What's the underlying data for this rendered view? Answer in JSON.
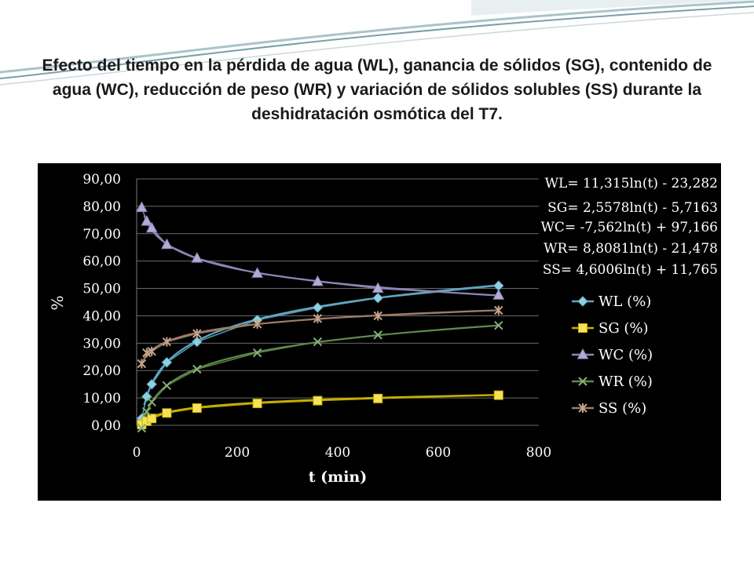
{
  "slide": {
    "title": "Efecto del tiempo en la pérdida de agua (WL), ganancia de sólidos (SG), contenido de agua (WC), reducción de peso (WR) y variación de sólidos solubles (SS) durante la deshidratación osmótica del T7."
  },
  "chart_data": {
    "type": "scatter",
    "xlabel": "t (min)",
    "ylabel": "%",
    "xlim": [
      0,
      800
    ],
    "ylim": [
      0,
      90
    ],
    "x_ticks": [
      0,
      200,
      400,
      600,
      800
    ],
    "x_tick_labels": [
      "0",
      "200",
      "400",
      "600",
      "800"
    ],
    "y_ticks": [
      0,
      10,
      20,
      30,
      40,
      50,
      60,
      70,
      80,
      90
    ],
    "y_tick_labels": [
      "0,00",
      "10,00",
      "20,00",
      "30,00",
      "40,00",
      "50,00",
      "60,00",
      "70,00",
      "80,00",
      "90,00"
    ],
    "grid": true,
    "legend_position": "right",
    "equations": [
      "WL= 11,315ln(t) - 23,282",
      "SG= 2,5578ln(t) - 5,7163",
      "WC= -7,562ln(t) + 97,166",
      "WR= 8,8081ln(t) - 21,478",
      "SS= 4,6006ln(t) + 11,765"
    ],
    "trendline": {
      "type": "logarithmic",
      "x_range": [
        15,
        720
      ]
    },
    "series": [
      {
        "name": "WL (%)",
        "color": "#5fa7c1",
        "marker_color": "#8fd0e2",
        "marker": "diamond",
        "trend_a": 11.315,
        "trend_b": -23.282,
        "points": [
          [
            10,
            2.5
          ],
          [
            20,
            10.5
          ],
          [
            30,
            15
          ],
          [
            60,
            23
          ],
          [
            120,
            30.5
          ],
          [
            240,
            38.5
          ],
          [
            360,
            43
          ],
          [
            480,
            46.5
          ],
          [
            720,
            51
          ]
        ]
      },
      {
        "name": "SG (%)",
        "color": "#c6b100",
        "marker_color": "#f6e25a",
        "marker": "square",
        "trend_a": 2.5578,
        "trend_b": -5.7163,
        "points": [
          [
            10,
            0.3
          ],
          [
            20,
            1.5
          ],
          [
            30,
            2.5
          ],
          [
            60,
            4.5
          ],
          [
            120,
            6.3
          ],
          [
            240,
            8
          ],
          [
            360,
            9
          ],
          [
            480,
            9.8
          ],
          [
            720,
            11
          ]
        ]
      },
      {
        "name": "WC (%)",
        "color": "#8e87b5",
        "marker_color": "#b3abd6",
        "marker": "triangle",
        "trend_a": -7.562,
        "trend_b": 97.166,
        "points": [
          [
            10,
            79.5
          ],
          [
            20,
            74.5
          ],
          [
            30,
            72
          ],
          [
            60,
            66
          ],
          [
            120,
            61
          ],
          [
            240,
            55.5
          ],
          [
            360,
            52.5
          ],
          [
            480,
            50
          ],
          [
            720,
            47.5
          ]
        ]
      },
      {
        "name": "WR (%)",
        "color": "#5d8a4f",
        "marker_color": "#86b078",
        "marker": "cross",
        "trend_a": 8.8081,
        "trend_b": -21.478,
        "points": [
          [
            10,
            -1
          ],
          [
            20,
            5
          ],
          [
            30,
            8.5
          ],
          [
            60,
            14.5
          ],
          [
            120,
            20.5
          ],
          [
            240,
            26.5
          ],
          [
            360,
            30.5
          ],
          [
            480,
            33
          ],
          [
            720,
            36.5
          ]
        ]
      },
      {
        "name": "SS (%)",
        "color": "#9c7d68",
        "marker_color": "#c6a48c",
        "marker": "star",
        "trend_a": 4.6006,
        "trend_b": 11.765,
        "points": [
          [
            10,
            22.5
          ],
          [
            20,
            26.5
          ],
          [
            30,
            27
          ],
          [
            60,
            30.5
          ],
          [
            120,
            33.5
          ],
          [
            240,
            37
          ],
          [
            360,
            39
          ],
          [
            480,
            40
          ],
          [
            720,
            42
          ]
        ]
      }
    ]
  }
}
